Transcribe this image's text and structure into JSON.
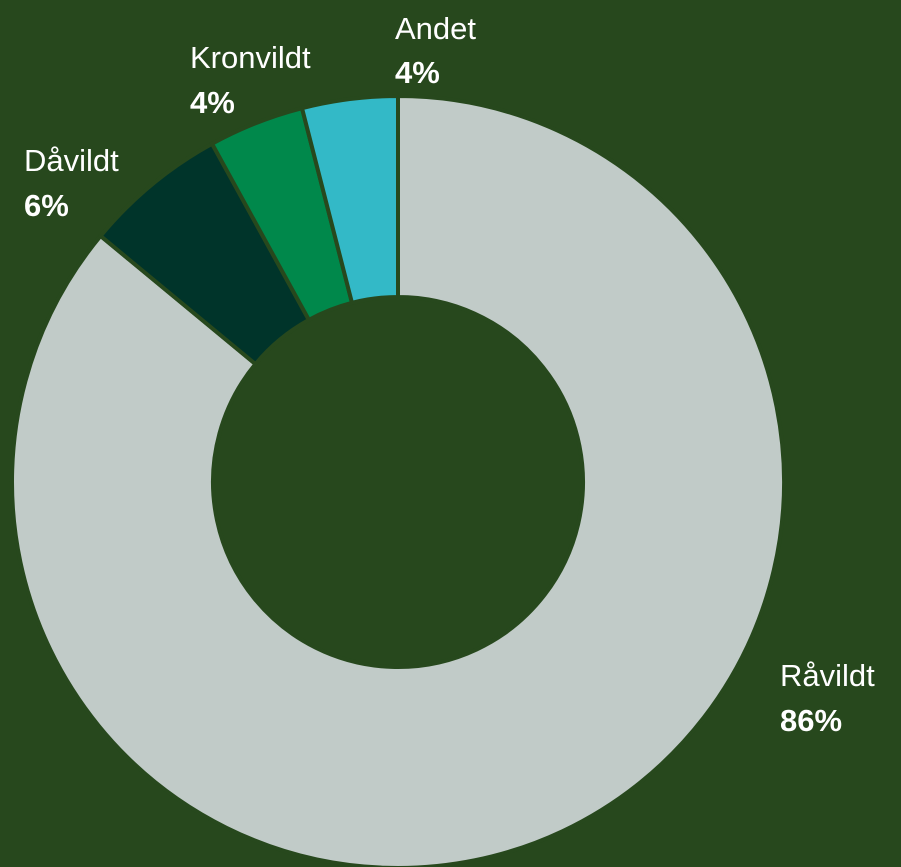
{
  "chart_data": {
    "type": "pie",
    "variant": "donut",
    "categories": [
      "Råvildt",
      "Dåvildt",
      "Kronvildt",
      "Andet"
    ],
    "values": [
      86,
      6,
      4,
      4
    ],
    "labels": [
      "86%",
      "6%",
      "4%",
      "4%"
    ],
    "colors": [
      "#c1cbc8",
      "#00342a",
      "#00884b",
      "#33b9c7"
    ],
    "background": "#27481d",
    "title": "",
    "legend": "none"
  }
}
